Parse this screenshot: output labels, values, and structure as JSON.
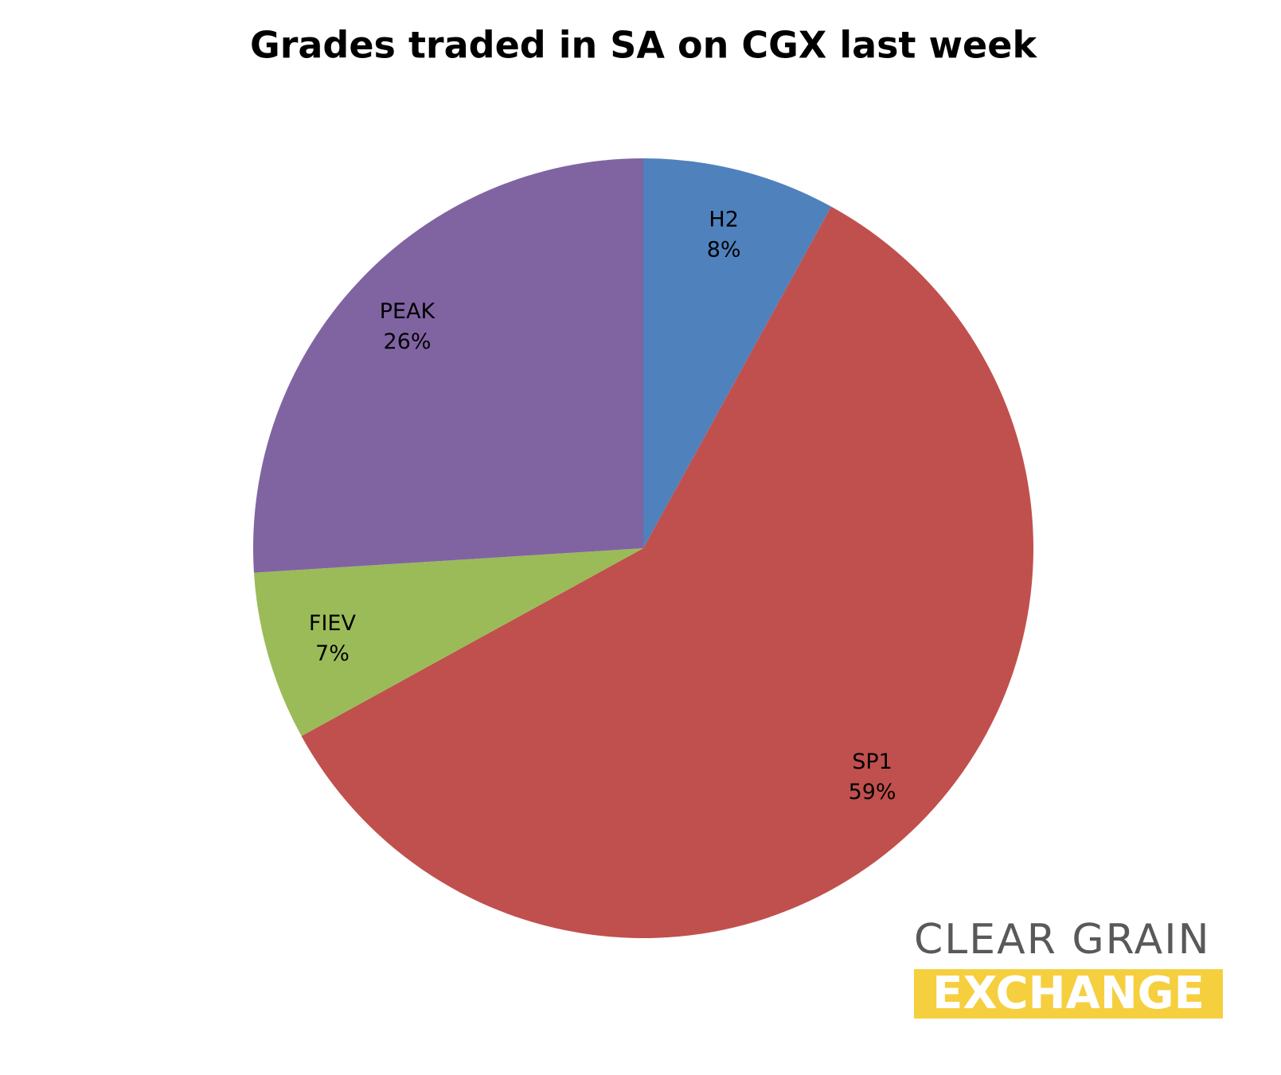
{
  "chart_data": {
    "type": "pie",
    "title": "Grades traded in SA on CGX last week",
    "categories": [
      "H2",
      "SP1",
      "FIEV",
      "PEAK"
    ],
    "values": [
      8,
      59,
      7,
      26
    ],
    "value_labels": [
      "8%",
      "59%",
      "7%",
      "26%"
    ],
    "colors": [
      "#4f81bd",
      "#c0504d",
      "#9bbb59",
      "#8064a2"
    ]
  },
  "logo": {
    "line1": "CLEAR GRAIN",
    "line2": "EXCHANGE"
  }
}
